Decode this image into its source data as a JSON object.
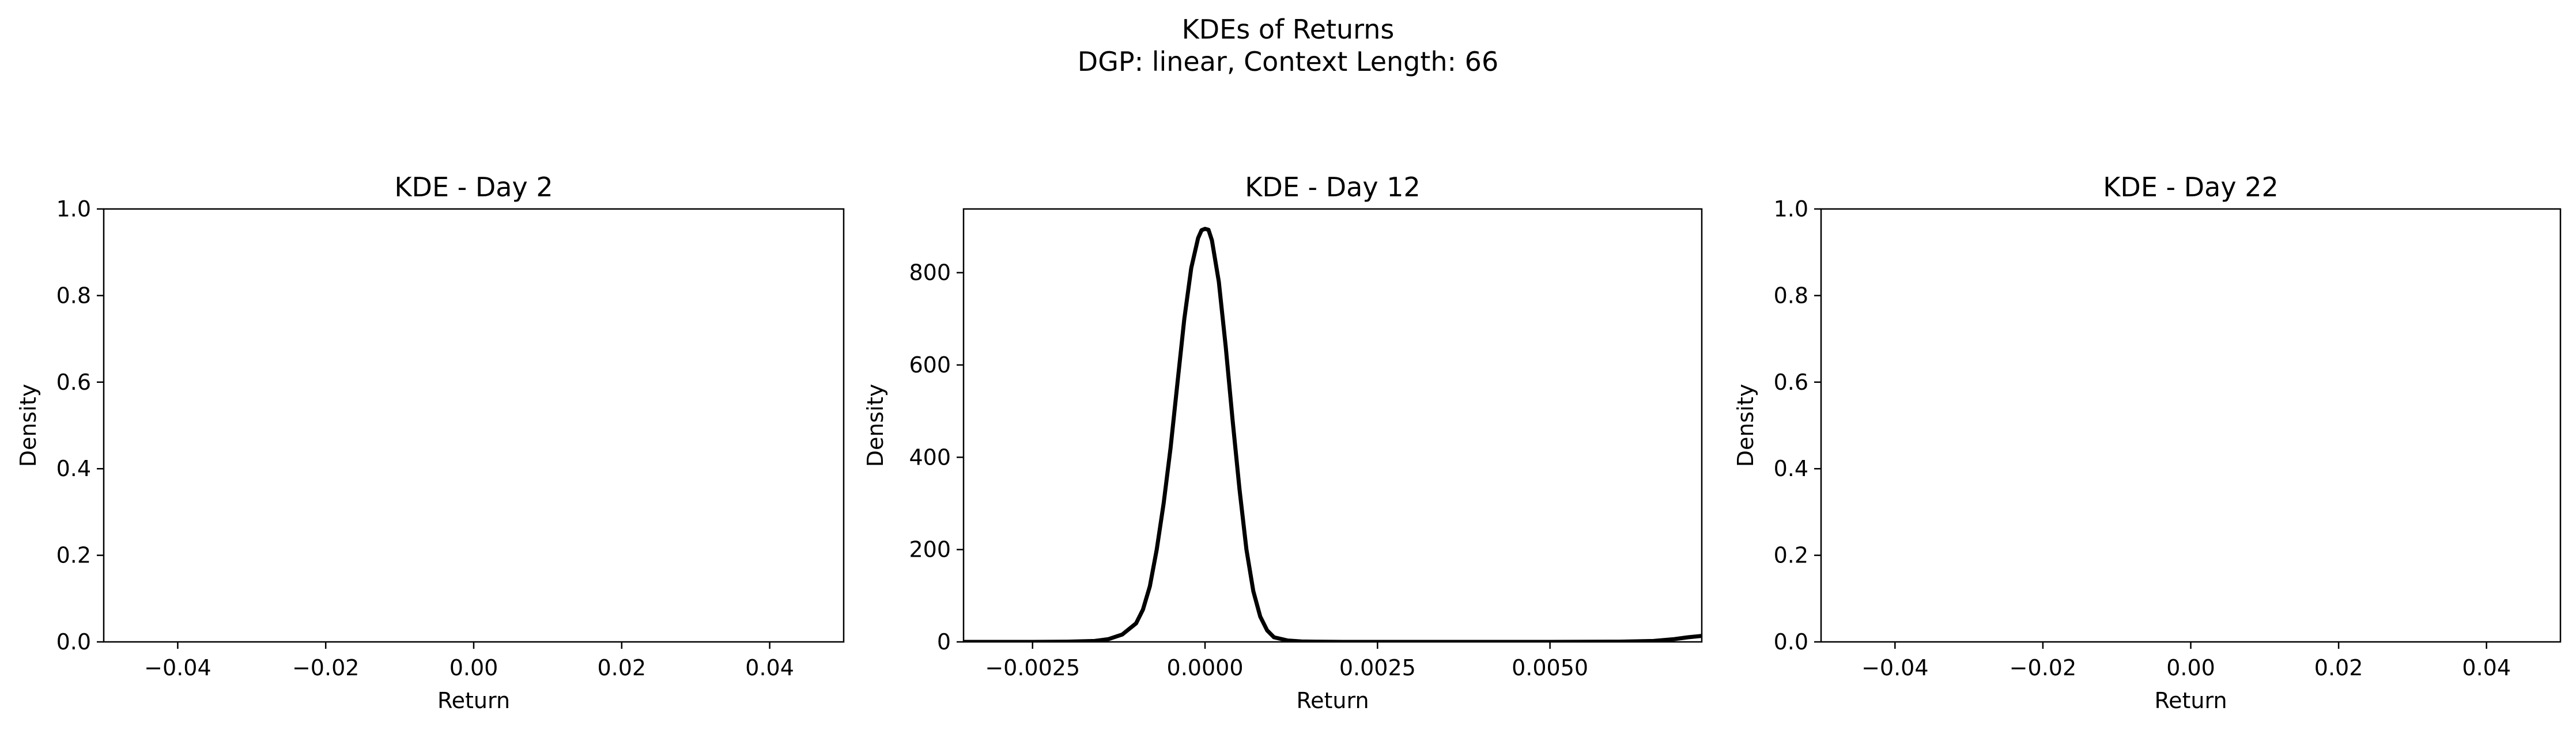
{
  "figure": {
    "suptitle_line1": "KDEs of Returns",
    "suptitle_line2": "DGP: linear, Context Length: 66"
  },
  "chart_data": [
    {
      "type": "line",
      "title": "KDE - Day 2",
      "xlabel": "Return",
      "ylabel": "Density",
      "xlim": [
        -0.05,
        0.05
      ],
      "ylim": [
        0,
        1
      ],
      "xticks": [
        -0.04,
        -0.02,
        0.0,
        0.02,
        0.04
      ],
      "xtick_labels": [
        "−0.04",
        "−0.02",
        "0.00",
        "0.02",
        "0.04"
      ],
      "yticks": [
        0,
        0.2,
        0.4,
        0.6,
        0.8,
        1.0
      ],
      "ytick_labels": [
        "0.0",
        "0.2",
        "0.4",
        "0.6",
        "0.8",
        "1.0"
      ],
      "grid": false,
      "series": []
    },
    {
      "type": "line",
      "title": "KDE - Day 12",
      "xlabel": "Return",
      "ylabel": "Density",
      "xlim": [
        -0.0035,
        0.0072
      ],
      "ylim": [
        0,
        938
      ],
      "xticks": [
        -0.0025,
        0.0,
        0.0025,
        0.005
      ],
      "xtick_labels": [
        "−0.0025",
        "0.0000",
        "0.0025",
        "0.0050"
      ],
      "yticks": [
        0,
        200,
        400,
        600,
        800
      ],
      "ytick_labels": [
        "0",
        "200",
        "400",
        "600",
        "800"
      ],
      "grid": false,
      "series": [
        {
          "color": "#000000",
          "x": [
            -0.0035,
            -0.0025,
            -0.002,
            -0.0016,
            -0.0014,
            -0.0012,
            -0.001,
            -0.0009,
            -0.0008,
            -0.0007,
            -0.0006,
            -0.0005,
            -0.0004,
            -0.0003,
            -0.0002,
            -0.0001,
            -5e-05,
            0.0,
            5e-05,
            0.0001,
            0.0002,
            0.0003,
            0.0004,
            0.0005,
            0.0006,
            0.0007,
            0.0008,
            0.0009,
            0.001,
            0.0012,
            0.0014,
            0.0016,
            0.002,
            0.003,
            0.004,
            0.005,
            0.006,
            0.0065,
            0.0068,
            0.007,
            0.0072
          ],
          "y": [
            0,
            0,
            0.5,
            2,
            6,
            16,
            40,
            70,
            120,
            200,
            300,
            420,
            560,
            700,
            810,
            875,
            892,
            895,
            893,
            870,
            780,
            640,
            480,
            330,
            200,
            110,
            55,
            25,
            10,
            3,
            1,
            0.5,
            0,
            0,
            0,
            0,
            0.5,
            2,
            6,
            10,
            13
          ]
        }
      ]
    },
    {
      "type": "line",
      "title": "KDE - Day 22",
      "xlabel": "Return",
      "ylabel": "Density",
      "xlim": [
        -0.05,
        0.05
      ],
      "ylim": [
        0,
        1
      ],
      "xticks": [
        -0.04,
        -0.02,
        0.0,
        0.02,
        0.04
      ],
      "xtick_labels": [
        "−0.04",
        "−0.02",
        "0.00",
        "0.02",
        "0.04"
      ],
      "yticks": [
        0,
        0.2,
        0.4,
        0.6,
        0.8,
        1.0
      ],
      "ytick_labels": [
        "0.0",
        "0.2",
        "0.4",
        "0.6",
        "0.8",
        "1.0"
      ],
      "grid": false,
      "series": []
    }
  ]
}
